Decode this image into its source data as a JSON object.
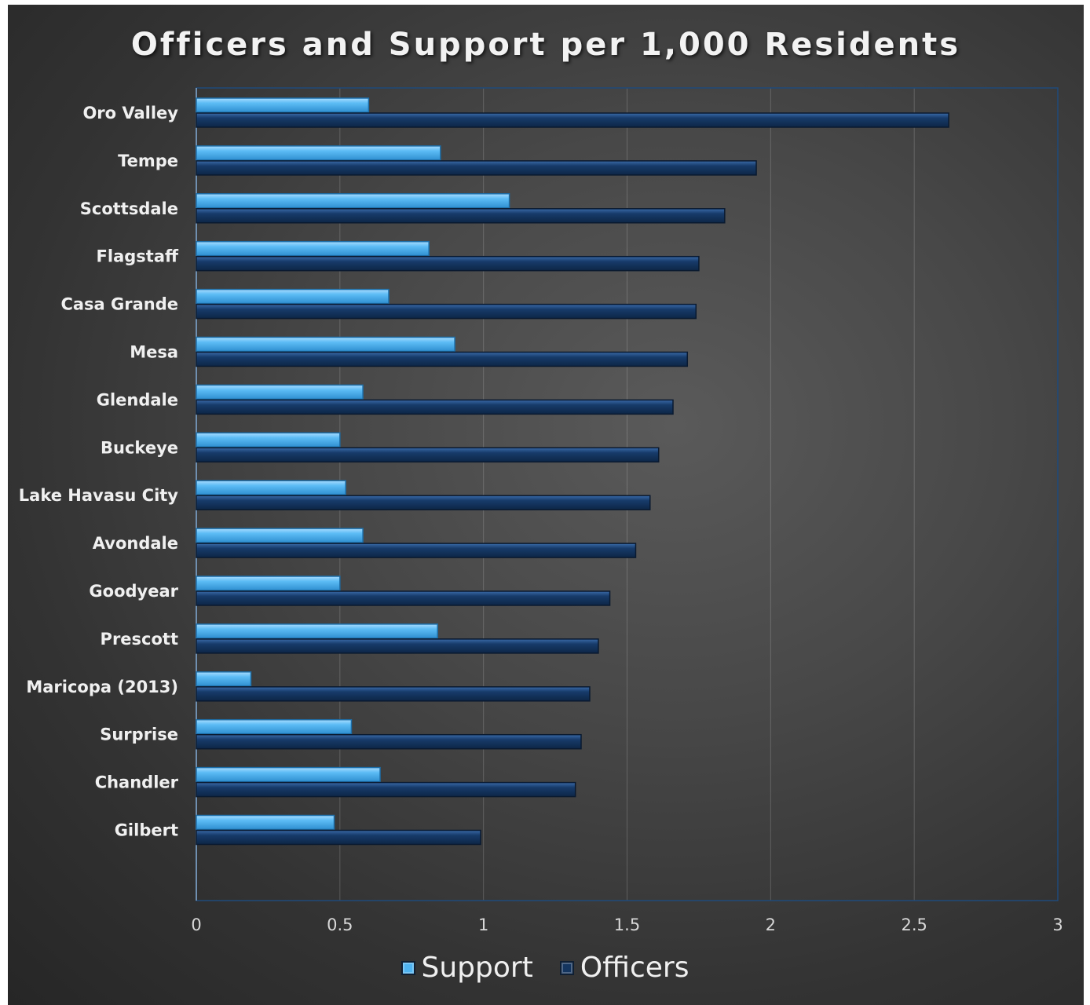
{
  "chart_data": {
    "type": "bar",
    "orientation": "horizontal",
    "title": "Officers and Support per 1,000 Residents",
    "xlabel": "",
    "ylabel": "",
    "xlim": [
      0,
      3
    ],
    "x_ticks": [
      "0",
      "0.5",
      "1",
      "1.5",
      "2",
      "2.5",
      "3"
    ],
    "x_tick_values": [
      0,
      0.5,
      1,
      1.5,
      2,
      2.5,
      3
    ],
    "grid": true,
    "legend_position": "bottom",
    "categories": [
      "Oro Valley",
      "Tempe",
      "Scottsdale",
      "Flagstaff",
      "Casa Grande",
      "Mesa",
      "Glendale",
      "Buckeye",
      "Lake Havasu City",
      "Avondale",
      "Goodyear",
      "Prescott",
      "Maricopa (2013)",
      "Surprise",
      "Chandler",
      "Gilbert"
    ],
    "series": [
      {
        "name": "Support",
        "color": "#4fb3f0",
        "values": [
          0.6,
          0.85,
          1.09,
          0.81,
          0.67,
          0.9,
          0.58,
          0.5,
          0.52,
          0.58,
          0.5,
          0.84,
          0.19,
          0.54,
          0.64,
          0.48
        ]
      },
      {
        "name": "Officers",
        "color": "#14355f",
        "values": [
          2.62,
          1.95,
          1.84,
          1.75,
          1.74,
          1.71,
          1.66,
          1.61,
          1.58,
          1.53,
          1.44,
          1.4,
          1.37,
          1.34,
          1.32,
          0.99
        ]
      }
    ]
  }
}
